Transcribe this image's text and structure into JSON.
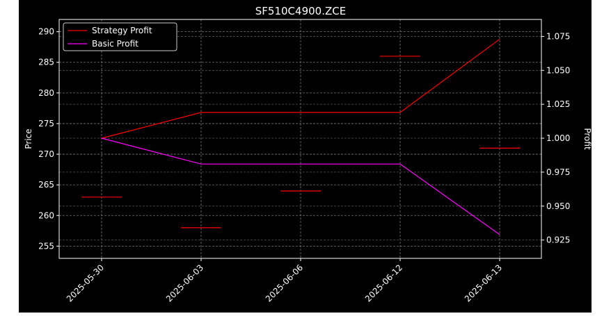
{
  "chart_data": {
    "type": "line",
    "title": "SF510C4900.ZCE",
    "ylabel_left": "Price",
    "ylabel_right": "Profit",
    "categories": [
      "2025-05-30",
      "2025-06-03",
      "2025-06-06",
      "2025-06-12",
      "2025-06-13"
    ],
    "price_axis": {
      "ylim": [
        253,
        292
      ],
      "ticks": [
        255,
        260,
        265,
        270,
        275,
        280,
        285,
        290
      ]
    },
    "profit_axis": {
      "ylim": [
        0.9115,
        1.0875
      ],
      "ticks": [
        "0.925",
        "0.950",
        "0.975",
        "1.000",
        "1.025",
        "1.050",
        "1.075"
      ]
    },
    "price_marks": [
      263,
      258,
      264,
      286,
      271
    ],
    "price_mark_color": "#ff0000",
    "series": [
      {
        "name": "Strategy Profit",
        "color": "#ff0000",
        "values": [
          1.0,
          1.019,
          1.019,
          1.019,
          1.073
        ]
      },
      {
        "name": "Basic Profit",
        "color": "#ff00ff",
        "values": [
          1.0,
          0.981,
          0.981,
          0.981,
          0.929
        ]
      }
    ],
    "grid": true,
    "legend_position": "top-left"
  }
}
